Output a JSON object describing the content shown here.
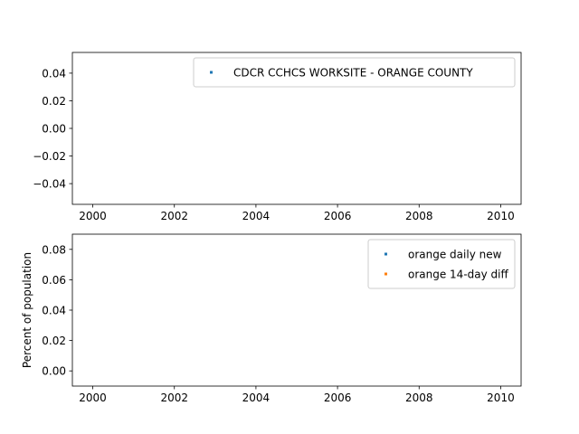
{
  "chart_data": [
    {
      "type": "scatter",
      "title": "",
      "xlabel": "",
      "ylabel": "",
      "xlim": [
        1999.5,
        2010.5
      ],
      "ylim": [
        -0.055,
        0.055
      ],
      "x_ticks": [
        2000,
        2002,
        2004,
        2006,
        2008,
        2010
      ],
      "x_tick_labels": [
        "2000",
        "2002",
        "2004",
        "2006",
        "2008",
        "2010"
      ],
      "y_ticks": [
        -0.04,
        -0.02,
        0.0,
        0.02,
        0.04
      ],
      "y_tick_labels": [
        "−0.04",
        "−0.02",
        "0.00",
        "0.02",
        "0.04"
      ],
      "grid": false,
      "legend_position": "upper right",
      "series": [
        {
          "name": "CDCR CCHCS WORKSITE - ORANGE COUNTY",
          "color": "#1f77b4",
          "x": [],
          "y": []
        }
      ]
    },
    {
      "type": "scatter",
      "title": "",
      "xlabel": "",
      "ylabel": "Percent of population",
      "xlim": [
        1999.5,
        2010.5
      ],
      "ylim": [
        -0.01,
        0.09
      ],
      "x_ticks": [
        2000,
        2002,
        2004,
        2006,
        2008,
        2010
      ],
      "x_tick_labels": [
        "2000",
        "2002",
        "2004",
        "2006",
        "2008",
        "2010"
      ],
      "y_ticks": [
        0.0,
        0.02,
        0.04,
        0.06,
        0.08
      ],
      "y_tick_labels": [
        "0.00",
        "0.02",
        "0.04",
        "0.06",
        "0.08"
      ],
      "grid": false,
      "legend_position": "upper right",
      "series": [
        {
          "name": "orange daily new",
          "color": "#1f77b4",
          "x": [],
          "y": []
        },
        {
          "name": "orange 14-day diff",
          "color": "#ff7f0e",
          "x": [],
          "y": []
        }
      ]
    }
  ]
}
